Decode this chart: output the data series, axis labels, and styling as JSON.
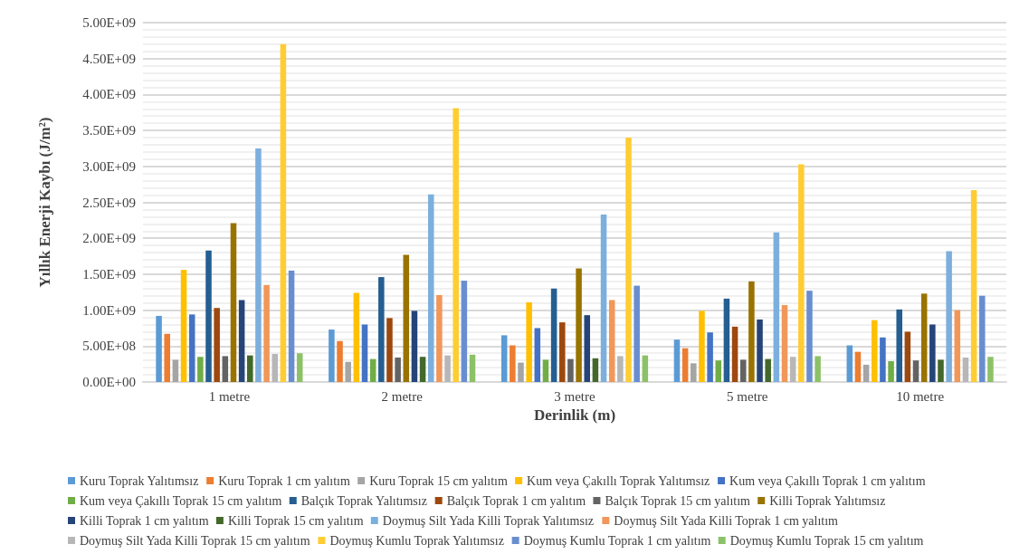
{
  "chart_data": {
    "type": "bar",
    "xlabel": "Derinlik (m)",
    "ylabel": "Yıllık Enerji Kaybı (J/m²)",
    "categories": [
      "1 metre",
      "2 metre",
      "3 metre",
      "5 metre",
      "10 metre"
    ],
    "ylim": [
      0,
      5000000000
    ],
    "yticks": [
      {
        "value": 0,
        "label": "0.00E+00"
      },
      {
        "value": 500000000,
        "label": "5.00E+08"
      },
      {
        "value": 1000000000,
        "label": "1.00E+09"
      },
      {
        "value": 1500000000,
        "label": "1.50E+09"
      },
      {
        "value": 2000000000,
        "label": "2.00E+09"
      },
      {
        "value": 2500000000,
        "label": "2.50E+09"
      },
      {
        "value": 3000000000,
        "label": "3.00E+09"
      },
      {
        "value": 3500000000,
        "label": "3.50E+09"
      },
      {
        "value": 4000000000,
        "label": "4.00E+09"
      },
      {
        "value": 4500000000,
        "label": "4.50E+09"
      },
      {
        "value": 5000000000,
        "label": "5.00E+09"
      }
    ],
    "grid": "y",
    "legend": "bottom",
    "series": [
      {
        "name": "Kuru Toprak Yalıtımsız",
        "color": "#5b9bd5",
        "values": [
          920000000,
          730000000,
          650000000,
          590000000,
          510000000
        ]
      },
      {
        "name": "Kuru Toprak 1 cm yalıtım",
        "color": "#ed7d31",
        "values": [
          670000000,
          570000000,
          510000000,
          470000000,
          420000000
        ]
      },
      {
        "name": "Kuru Toprak 15 cm yalıtım",
        "color": "#a5a5a5",
        "values": [
          310000000,
          280000000,
          270000000,
          260000000,
          240000000
        ]
      },
      {
        "name": "Kum veya Çakıllı Toprak Yalıtımsız",
        "color": "#ffc000",
        "values": [
          1560000000,
          1240000000,
          1110000000,
          990000000,
          860000000
        ]
      },
      {
        "name": "Kum veya Çakıllı Toprak 1 cm yalıtım",
        "color": "#4472c4",
        "values": [
          940000000,
          800000000,
          750000000,
          690000000,
          620000000
        ]
      },
      {
        "name": "Kum veya Çakıllı Toprak 15 cm yalıtım",
        "color": "#70ad47",
        "values": [
          350000000,
          320000000,
          310000000,
          300000000,
          290000000
        ]
      },
      {
        "name": "Balçık Toprak Yalıtımsız",
        "color": "#255e91",
        "values": [
          1830000000,
          1460000000,
          1300000000,
          1160000000,
          1010000000
        ]
      },
      {
        "name": "Balçık Toprak 1 cm yalıtım",
        "color": "#9e480e",
        "values": [
          1030000000,
          890000000,
          830000000,
          770000000,
          700000000
        ]
      },
      {
        "name": "Balçık Toprak 15 cm yalıtım",
        "color": "#636363",
        "values": [
          360000000,
          340000000,
          320000000,
          310000000,
          300000000
        ]
      },
      {
        "name": "Killi Toprak Yalıtımsız",
        "color": "#997300",
        "values": [
          2210000000,
          1770000000,
          1580000000,
          1400000000,
          1230000000
        ]
      },
      {
        "name": "Killi Toprak 1 cm yalıtım",
        "color": "#264478",
        "values": [
          1140000000,
          990000000,
          930000000,
          870000000,
          800000000
        ]
      },
      {
        "name": "Killi Toprak 15 cm yalıtım",
        "color": "#43682b",
        "values": [
          370000000,
          350000000,
          330000000,
          320000000,
          310000000
        ]
      },
      {
        "name": "Doymuş Silt Yada Killi Toprak Yalıtımsız",
        "color": "#7cafdd",
        "values": [
          3250000000,
          2610000000,
          2330000000,
          2080000000,
          1820000000
        ]
      },
      {
        "name": "Doymuş Silt Yada Killi Toprak 1 cm yalıtım",
        "color": "#f1975a",
        "values": [
          1350000000,
          1210000000,
          1140000000,
          1070000000,
          1000000000
        ]
      },
      {
        "name": "Doymuş Silt Yada Killi Toprak 15 cm yalıtım",
        "color": "#b7b7b7",
        "values": [
          390000000,
          370000000,
          360000000,
          350000000,
          340000000
        ]
      },
      {
        "name": "Doymuş Kumlu Toprak Yalıtımsız",
        "color": "#ffcd33",
        "values": [
          4700000000,
          3810000000,
          3400000000,
          3030000000,
          2670000000
        ]
      },
      {
        "name": "Doymuş Kumlu Toprak 1 cm yalıtım",
        "color": "#698ed0",
        "values": [
          1550000000,
          1410000000,
          1340000000,
          1270000000,
          1200000000
        ]
      },
      {
        "name": "Doymuş Kumlu Toprak 15 cm yalıtım",
        "color": "#8cc168",
        "values": [
          400000000,
          380000000,
          370000000,
          360000000,
          350000000
        ]
      }
    ]
  }
}
